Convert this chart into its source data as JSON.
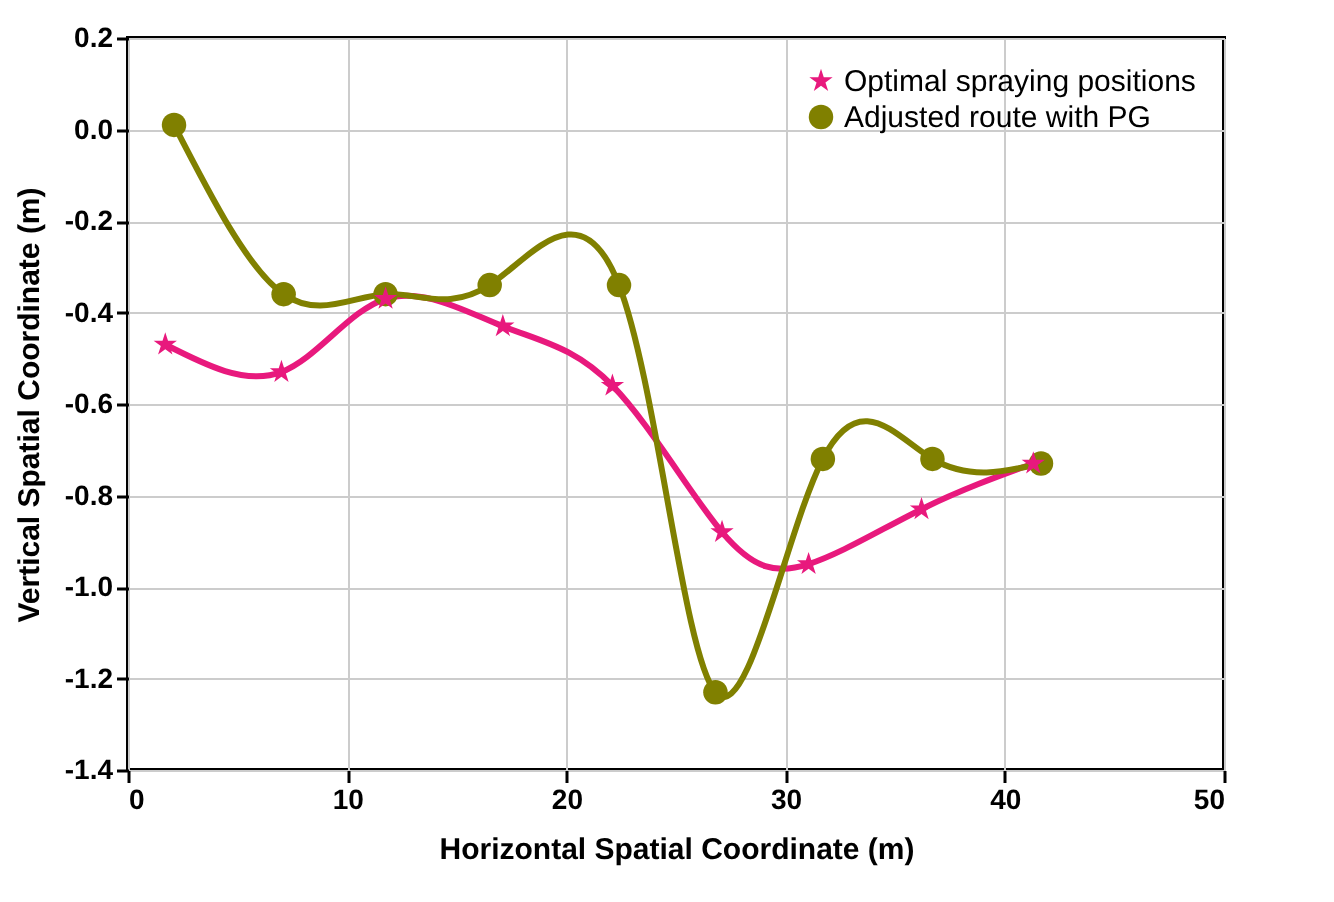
{
  "chart_data": {
    "type": "line",
    "xlabel": "Horizontal Spatial Coordinate (m)",
    "ylabel": "Vertical Spatial Coordinate (m)",
    "xlim": [
      0,
      50
    ],
    "xticks": [
      0,
      10,
      20,
      30,
      40,
      50
    ],
    "ylim": [
      -1.4,
      0.2
    ],
    "yticks": [
      -1.4,
      -1.2,
      {
        "value": -1,
        "label": "-1.0"
      },
      -0.8,
      -0.6,
      -0.4,
      -0.2,
      {
        "value": 0,
        "label": "0.0"
      },
      0.2
    ],
    "grid": true,
    "legend": "top right",
    "series": [
      {
        "name": "Optimal spraying positions",
        "color": "#e8197d",
        "marker": "star",
        "x": [
          1.7,
          7.0,
          11.75,
          17.1,
          22.1,
          27.1,
          31.05,
          36.2,
          41.3
        ],
        "values": [
          -0.47,
          -0.53,
          -0.37,
          -0.43,
          -0.56,
          -0.88,
          -0.95,
          -0.83,
          -0.73
        ]
      },
      {
        "name": "Adjusted route with PG",
        "color": "#808000",
        "marker": "circle",
        "x": [
          2.1,
          7.1,
          11.75,
          16.5,
          22.4,
          26.8,
          31.7,
          36.7,
          41.65
        ],
        "values": [
          0.01,
          -0.36,
          -0.36,
          -0.34,
          -0.34,
          -1.23,
          -0.72,
          -0.72,
          -0.73
        ]
      }
    ]
  }
}
